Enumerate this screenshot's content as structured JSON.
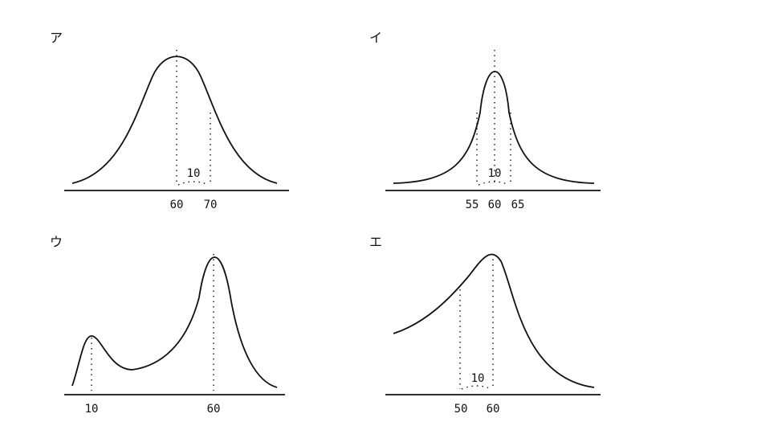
{
  "panels": [
    {
      "label": "ア",
      "axis_labels": [
        "60",
        "70"
      ],
      "annotation": "10"
    },
    {
      "label": "イ",
      "axis_labels": [
        "55",
        "60",
        "65"
      ],
      "annotation": "10"
    },
    {
      "label": "ウ",
      "axis_labels": [
        "10",
        "60"
      ]
    },
    {
      "label": "エ",
      "axis_labels": [
        "50",
        "60"
      ],
      "annotation": "10"
    }
  ]
}
